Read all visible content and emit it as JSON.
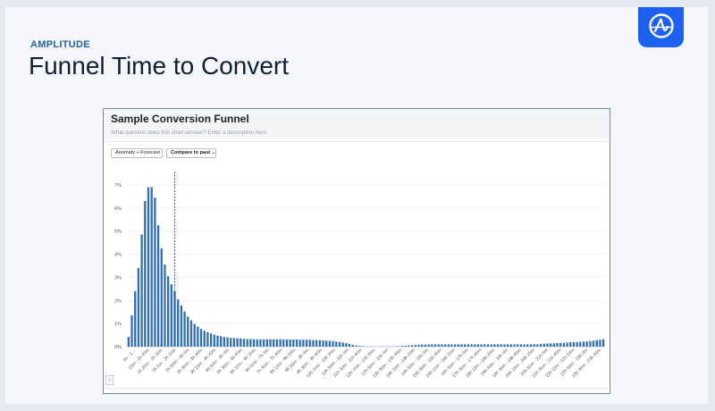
{
  "slide": {
    "brand": "AMPLITUDE",
    "title": "Funnel Time to Convert"
  },
  "logo": {
    "icon": "amplitude-logo-icon",
    "color": "#1E61F0"
  },
  "card": {
    "title": "Sample Conversion Funnel",
    "description": "What question does this chart answer? Enter a description here.",
    "buttons": {
      "anomaly": "Anomaly + Forecast",
      "compare": "Compare to past"
    },
    "scroll_left_icon": "chevron-left-icon"
  },
  "chart_data": {
    "type": "bar",
    "bar_color": "#2f6db5",
    "y_ticks": [
      "0%",
      "1%",
      "2%",
      "3%",
      "4%",
      "5%",
      "6%",
      "7%"
    ],
    "ylim": [
      0,
      7.5
    ],
    "x_labels": [
      "0s - 1 ...",
      "10m - 1h 40m",
      "1h 20m - 1h 30m",
      "2h 0m - 2h 10m",
      "2h 50m - 3h 0m",
      "3h 30m - 3h 40m",
      "4h 10m - 4h 20m",
      "4h 50m - 5h 0m",
      "5h 30m - 5h 40m",
      "6h 10m - 6h 20m",
      "6h 50m - 7h 0m",
      "7h 30m - 7h 40m",
      "8h 10m - 8h 20m",
      "8h 50m - 9h 0m",
      "9h 30m - 9h 40m",
      "10h 10m - 10h 20m",
      "10h 50m - 11h 0m",
      "11h 30m - 11h 40m",
      "12h 10m - 12h 20m",
      "12h 50m - 13h 0m",
      "13h 30m - 13h 40m",
      "14h 10m - 14h 20m",
      "14h 50m - 15h 0m",
      "15h 30m - 15h 40m",
      "16h 10m - 16h 20m",
      "16h 50m - 17h 0m",
      "17h 30m - 17h 40m",
      "18h 10m - 18h 20m",
      "18h 50m - 19h 0m",
      "19h 30m - 19h 40m",
      "20h 10m - 20h 20m",
      "20h 50m - 21h 0m",
      "21h 30m - 21h 40m",
      "22h 10m - 22h 20m",
      "22h 50m - 23h 0m",
      "23h 30m - 23h 40m"
    ],
    "marker_bar_index": 14,
    "values": [
      0.42,
      1.35,
      2.4,
      3.4,
      4.85,
      6.3,
      6.9,
      6.9,
      6.45,
      5.25,
      4.25,
      3.55,
      3.05,
      2.7,
      2.4,
      2.05,
      1.78,
      1.52,
      1.3,
      1.14,
      0.98,
      0.87,
      0.77,
      0.69,
      0.63,
      0.57,
      0.52,
      0.48,
      0.45,
      0.42,
      0.4,
      0.38,
      0.37,
      0.36,
      0.35,
      0.34,
      0.33,
      0.33,
      0.32,
      0.32,
      0.32,
      0.32,
      0.32,
      0.32,
      0.32,
      0.32,
      0.32,
      0.31,
      0.31,
      0.31,
      0.31,
      0.31,
      0.3,
      0.3,
      0.3,
      0.3,
      0.29,
      0.29,
      0.28,
      0.27,
      0.26,
      0.25,
      0.24,
      0.22,
      0.2,
      0.18,
      0.15,
      0.12,
      0.08,
      0.05,
      0.03,
      0.02,
      0.01,
      0.01,
      0.01,
      0.01,
      0.01,
      0.01,
      0.01,
      0.01,
      0.01,
      0.02,
      0.02,
      0.03,
      0.04,
      0.05,
      0.06,
      0.07,
      0.08,
      0.09,
      0.09,
      0.1,
      0.1,
      0.1,
      0.1,
      0.1,
      0.1,
      0.1,
      0.1,
      0.1,
      0.1,
      0.1,
      0.1,
      0.1,
      0.1,
      0.1,
      0.1,
      0.1,
      0.1,
      0.1,
      0.1,
      0.1,
      0.1,
      0.1,
      0.1,
      0.1,
      0.1,
      0.1,
      0.1,
      0.1,
      0.1,
      0.1,
      0.1,
      0.1,
      0.1,
      0.12,
      0.13,
      0.13,
      0.14,
      0.14,
      0.15,
      0.16,
      0.17,
      0.18,
      0.19,
      0.2,
      0.2,
      0.21,
      0.22,
      0.23,
      0.24,
      0.26,
      0.28,
      0.3,
      0.32
    ]
  }
}
